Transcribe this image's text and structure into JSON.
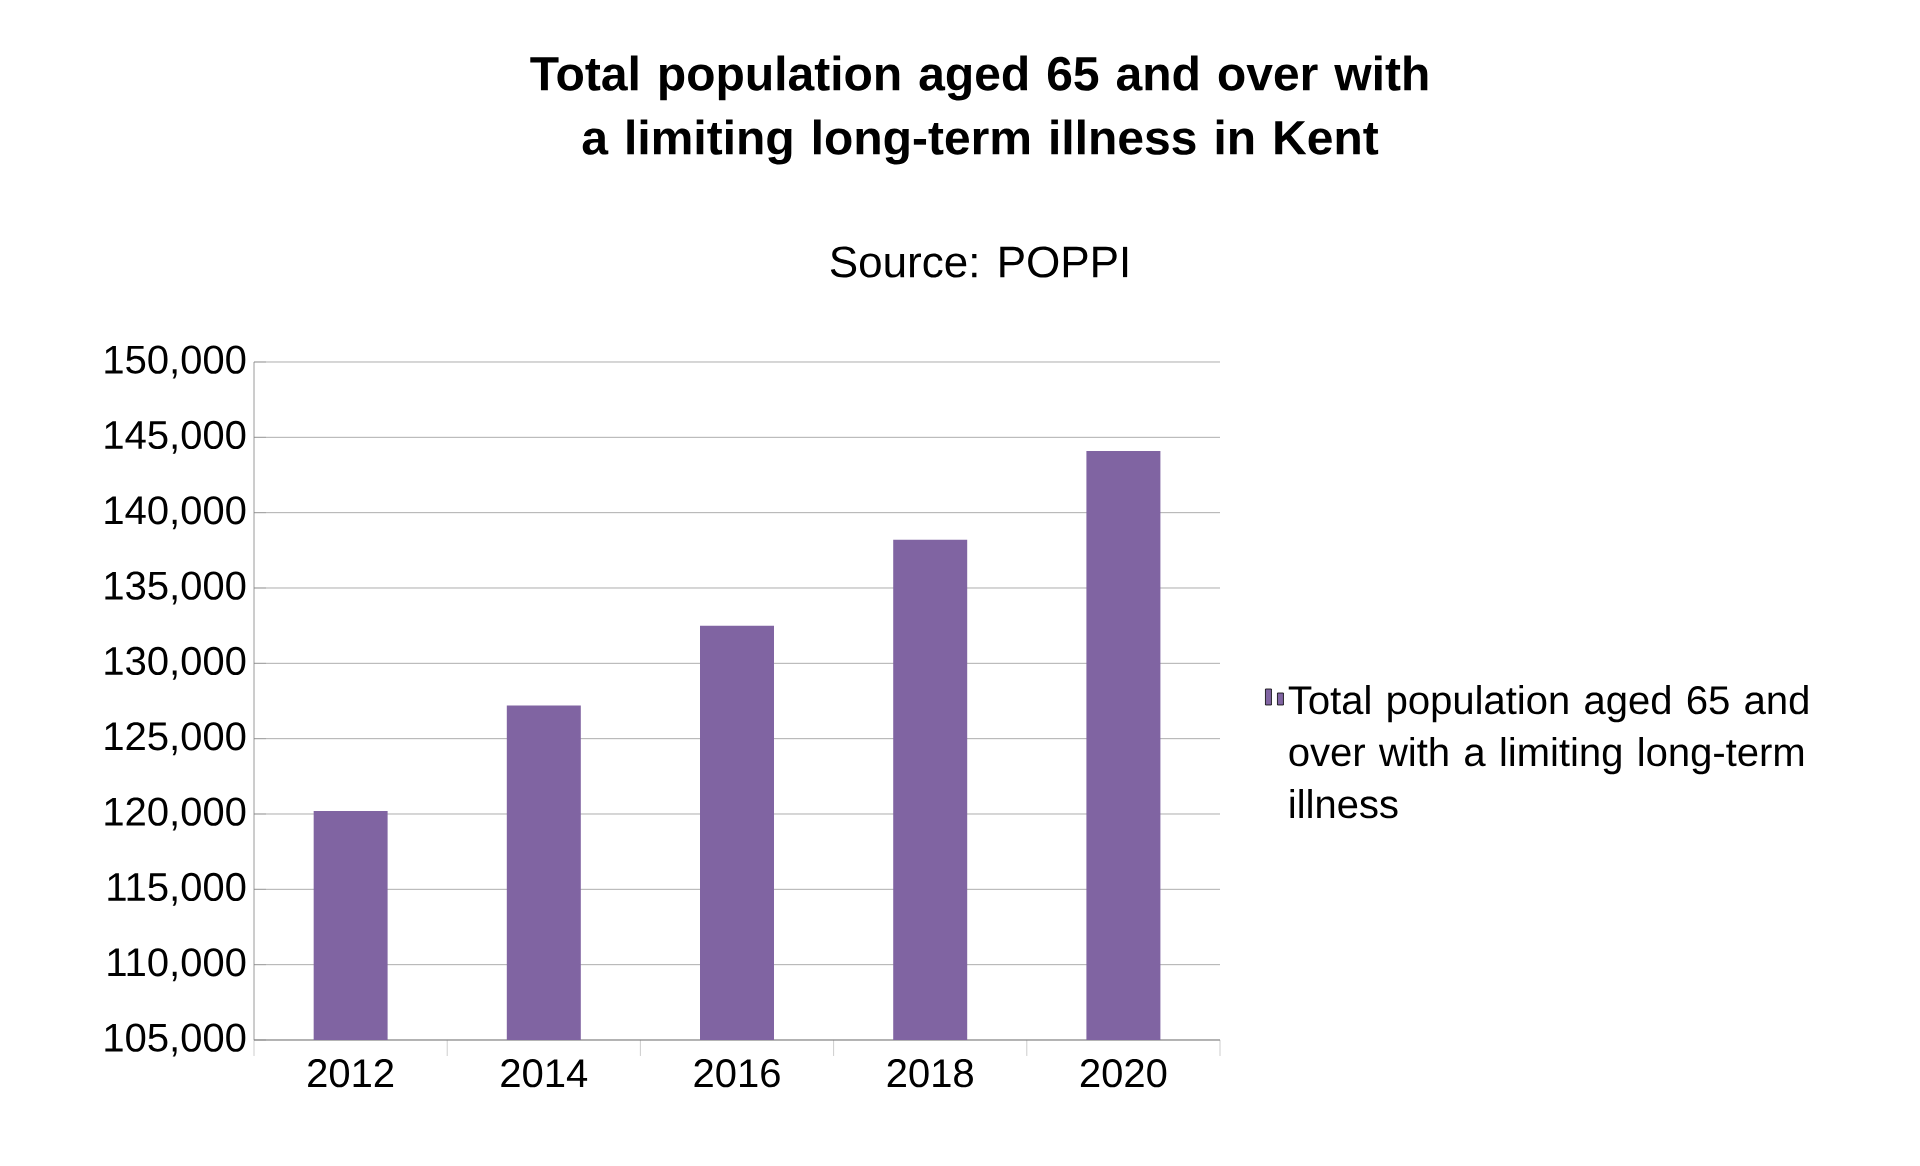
{
  "chart_data": {
    "type": "bar",
    "title": "Total population aged 65 and over with a limiting long-term illness in Kent",
    "subtitle": "Source: POPPI",
    "categories": [
      "2012",
      "2014",
      "2016",
      "2018",
      "2020"
    ],
    "series": [
      {
        "name": "Total population aged 65 and over with a limiting long-term illness",
        "color": "#8064a2",
        "values": [
          120200,
          127200,
          132500,
          138200,
          144100
        ]
      }
    ],
    "ylim": [
      105000,
      150000
    ],
    "yticks": [
      {
        "value": 105000,
        "label": "105,000"
      },
      {
        "value": 110000,
        "label": "110,000"
      },
      {
        "value": 115000,
        "label": "115,000"
      },
      {
        "value": 120000,
        "label": "120,000"
      },
      {
        "value": 125000,
        "label": "125,000"
      },
      {
        "value": 130000,
        "label": "130,000"
      },
      {
        "value": 135000,
        "label": "135,000"
      },
      {
        "value": 140000,
        "label": "140,000"
      },
      {
        "value": 145000,
        "label": "145,000"
      },
      {
        "value": 150000,
        "label": "150,000"
      }
    ],
    "grid": "y",
    "legend": "right"
  }
}
